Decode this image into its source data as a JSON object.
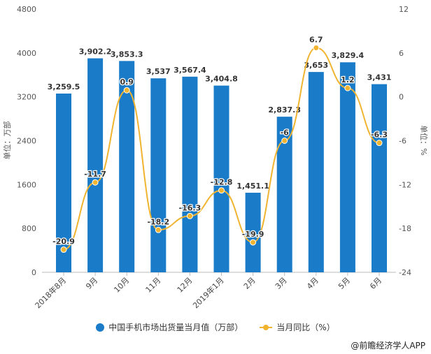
{
  "chart_data": {
    "type": "bar+line",
    "categories": [
      "2018年8月",
      "9月",
      "10月",
      "11月",
      "12月",
      "2019年1月",
      "2月",
      "3月",
      "4月",
      "5月",
      "6月"
    ],
    "series": [
      {
        "name": "中国手机市场出货量当月值（万部）",
        "type": "bar",
        "axis": "left",
        "color": "#1a7bc8",
        "values": [
          3259.5,
          3902.2,
          3853.3,
          3537,
          3567.4,
          3404.8,
          1451.1,
          2837.3,
          3653,
          3829.4,
          3431
        ],
        "labels": [
          "3,259.5",
          "3,902.2",
          "3,853.3",
          "3,537",
          "3,567.4",
          "3,404.8",
          "1,451.1",
          "2,837.3",
          "3,653",
          "3,829.4",
          "3,431"
        ]
      },
      {
        "name": "当月同比（%）",
        "type": "line",
        "axis": "right",
        "color": "#f0b431",
        "values": [
          -20.9,
          -11.7,
          0.9,
          -18.2,
          -16.3,
          -12.8,
          -19.9,
          -6,
          6.7,
          1.2,
          -6.3
        ],
        "labels": [
          "-20.9",
          "-11.7",
          "0.9",
          "-18.2",
          "-16.3",
          "-12.8",
          "-19.9",
          "-6",
          "6.7",
          "1.2",
          "-6.3"
        ]
      }
    ],
    "ylabel": "单位：万部",
    "y2label": "单位：%",
    "ylim": [
      0,
      4800
    ],
    "yticks": [
      "0",
      "800",
      "1600",
      "2400",
      "3200",
      "4000",
      "4800"
    ],
    "y2lim": [
      -24,
      12
    ],
    "y2ticks": [
      "-24",
      "-18",
      "-12",
      "-6",
      "0",
      "6",
      "12"
    ],
    "legend_position": "bottom"
  },
  "footer": "@前瞻经济学人APP"
}
